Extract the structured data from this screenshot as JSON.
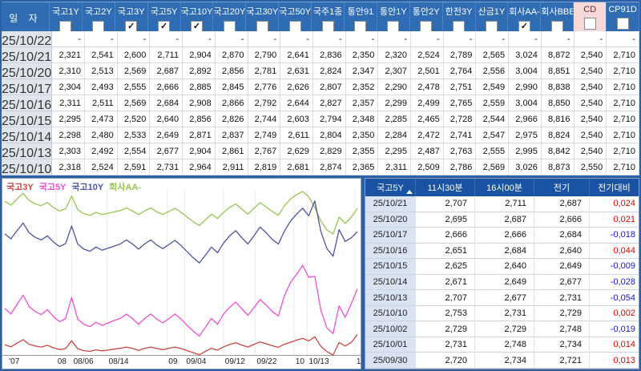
{
  "colors": {
    "frame_blue": "#2b5fa6",
    "header_blue": "#2f6cb3",
    "quote_header_blue": "#1a53a3",
    "date_cell_bg": "#e0e5ec",
    "quote_date_bg": "#d9e3f1",
    "cd_header_bg": "#f8d9d9",
    "cd_header_text": "#6a2a2a",
    "positive_red": "#e00000",
    "negative_blue": "#1616cc"
  },
  "top_table": {
    "date_header": "일 자",
    "columns": [
      {
        "label": "국고1Y",
        "checked": false
      },
      {
        "label": "국고2Y",
        "checked": false
      },
      {
        "label": "국고3Y",
        "checked": true
      },
      {
        "label": "국고5Y",
        "checked": true
      },
      {
        "label": "국고10Y",
        "checked": true
      },
      {
        "label": "국고20Y",
        "checked": false
      },
      {
        "label": "국고30Y",
        "checked": false
      },
      {
        "label": "국고50Y",
        "checked": false
      },
      {
        "label": "국주1종",
        "checked": false
      },
      {
        "label": "통안91",
        "checked": false
      },
      {
        "label": "통안1Y",
        "checked": false
      },
      {
        "label": "통안2Y",
        "checked": false
      },
      {
        "label": "한전3Y",
        "checked": false
      },
      {
        "label": "산금1Y",
        "checked": false
      },
      {
        "label": "회사AA-",
        "checked": true
      },
      {
        "label": "회사BBB-",
        "checked": false
      },
      {
        "label": "CD",
        "checked": false,
        "highlight": true
      },
      {
        "label": "CP91D",
        "checked": false
      }
    ],
    "rows": [
      {
        "date": "25/10/22",
        "values": [
          "-",
          "-",
          "-",
          "-",
          "-",
          "-",
          "-",
          "-",
          "-",
          "-",
          "-",
          "-",
          "-",
          "-",
          "-",
          "-",
          "-",
          "-"
        ]
      },
      {
        "date": "25/10/21",
        "values": [
          "2,321",
          "2,541",
          "2,600",
          "2,711",
          "2,904",
          "2,870",
          "2,790",
          "2,641",
          "2,836",
          "2,350",
          "2,320",
          "2,524",
          "2,789",
          "2,565",
          "3,024",
          "8,872",
          "2,540",
          "2,710"
        ]
      },
      {
        "date": "25/10/20",
        "values": [
          "2,310",
          "2,513",
          "2,569",
          "2,687",
          "2,892",
          "2,856",
          "2,781",
          "2,631",
          "2,824",
          "2,347",
          "2,307",
          "2,501",
          "2,764",
          "2,556",
          "3,004",
          "8,851",
          "2,540",
          "2,710"
        ]
      },
      {
        "date": "25/10/17",
        "values": [
          "2,304",
          "2,493",
          "2,555",
          "2,666",
          "2,885",
          "2,845",
          "2,776",
          "2,626",
          "2,807",
          "2,352",
          "2,290",
          "2,478",
          "2,751",
          "2,549",
          "2,990",
          "8,838",
          "2,540",
          "2,710"
        ]
      },
      {
        "date": "25/10/16",
        "values": [
          "2,311",
          "2,511",
          "2,569",
          "2,684",
          "2,908",
          "2,866",
          "2,792",
          "2,644",
          "2,827",
          "2,357",
          "2,299",
          "2,499",
          "2,765",
          "2,559",
          "3,004",
          "8,850",
          "2,540",
          "2,710"
        ]
      },
      {
        "date": "25/10/15",
        "values": [
          "2,295",
          "2,473",
          "2,520",
          "2,640",
          "2,856",
          "2,826",
          "2,744",
          "2,603",
          "2,794",
          "2,348",
          "2,285",
          "2,465",
          "2,728",
          "2,544",
          "2,966",
          "8,816",
          "2,540",
          "2,710"
        ]
      },
      {
        "date": "25/10/14",
        "values": [
          "2,298",
          "2,480",
          "2,533",
          "2,649",
          "2,871",
          "2,837",
          "2,749",
          "2,611",
          "2,804",
          "2,350",
          "2,284",
          "2,472",
          "2,741",
          "2,547",
          "2,975",
          "8,824",
          "2,540",
          "2,710"
        ]
      },
      {
        "date": "25/10/13",
        "values": [
          "2,303",
          "2,492",
          "2,554",
          "2,677",
          "2,904",
          "2,861",
          "2,767",
          "2,629",
          "2,829",
          "2,355",
          "2,295",
          "2,487",
          "2,763",
          "2,555",
          "2,995",
          "8,842",
          "2,540",
          "2,710"
        ]
      },
      {
        "date": "25/10/10",
        "values": [
          "2,318",
          "2,524",
          "2,591",
          "2,731",
          "2,964",
          "2,911",
          "2,819",
          "2,681",
          "2,874",
          "2,365",
          "2,311",
          "2,509",
          "2,786",
          "2,569",
          "3,026",
          "8,873",
          "2,550",
          "2,710"
        ]
      }
    ]
  },
  "quote_table": {
    "title": "국고5Y",
    "columns": [
      "11시30분",
      "16시00분",
      "전기",
      "전기대비"
    ],
    "rows": [
      {
        "date": "25/10/21",
        "t1130": "2,707",
        "t1600": "2,711",
        "prev": "2,687",
        "change": "0,024"
      },
      {
        "date": "25/10/20",
        "t1130": "2,695",
        "t1600": "2,687",
        "prev": "2,666",
        "change": "0,021"
      },
      {
        "date": "25/10/17",
        "t1130": "2,666",
        "t1600": "2,666",
        "prev": "2,684",
        "change": "-0,018"
      },
      {
        "date": "25/10/16",
        "t1130": "2,651",
        "t1600": "2,684",
        "prev": "2,640",
        "change": "0,044"
      },
      {
        "date": "25/10/15",
        "t1130": "2,625",
        "t1600": "2,640",
        "prev": "2,649",
        "change": "-0,009"
      },
      {
        "date": "25/10/14",
        "t1130": "2,671",
        "t1600": "2,649",
        "prev": "2,677",
        "change": "-0,028"
      },
      {
        "date": "25/10/13",
        "t1130": "2,707",
        "t1600": "2,677",
        "prev": "2,731",
        "change": "-0,054"
      },
      {
        "date": "25/10/10",
        "t1130": "2,753",
        "t1600": "2,731",
        "prev": "2,729",
        "change": "0,002"
      },
      {
        "date": "25/10/02",
        "t1130": "2,729",
        "t1600": "2,729",
        "prev": "2,748",
        "change": "-0,019"
      },
      {
        "date": "25/10/01",
        "t1130": "2,731",
        "t1600": "2,748",
        "prev": "2,734",
        "change": "0,014"
      },
      {
        "date": "25/09/30",
        "t1130": "2,720",
        "t1600": "2,734",
        "prev": "2,721",
        "change": "0,013"
      }
    ]
  },
  "chart_data": {
    "type": "line",
    "title": "",
    "legend_position": "top-left",
    "grid": "vertical",
    "x_ticks": [
      {
        "label": "'07",
        "pos": 0.012
      },
      {
        "label": "08",
        "pos": 0.145
      },
      {
        "label": "08/06",
        "pos": 0.19
      },
      {
        "label": "08/14",
        "pos": 0.29
      },
      {
        "label": "09",
        "pos": 0.46
      },
      {
        "label": "09/04",
        "pos": 0.51
      },
      {
        "label": "09/12",
        "pos": 0.62
      },
      {
        "label": "09/22",
        "pos": 0.71
      },
      {
        "label": "10",
        "pos": 0.82
      },
      {
        "label": "10/13",
        "pos": 0.858
      },
      {
        "label": "1",
        "pos": 0.993
      }
    ],
    "series": [
      {
        "name": "국고3Y",
        "color": "#cc4643",
        "values": [
          2.56,
          2.552,
          2.566,
          2.58,
          2.562,
          2.555,
          2.551,
          2.558,
          2.548,
          2.541,
          2.545,
          2.576,
          2.544,
          2.537,
          2.534,
          2.54,
          2.536,
          2.539,
          2.543,
          2.546,
          2.551,
          2.546,
          2.538,
          2.546,
          2.551,
          2.545,
          2.541,
          2.546,
          2.551,
          2.545,
          2.537,
          2.529,
          2.521,
          2.534,
          2.546,
          2.539,
          2.552,
          2.561,
          2.568,
          2.559,
          2.551,
          2.561,
          2.571,
          2.564,
          2.556,
          2.55,
          2.562,
          2.57,
          2.578,
          2.585,
          2.575,
          2.591,
          2.554,
          2.533,
          2.52,
          2.569,
          2.555,
          2.569,
          2.6
        ]
      },
      {
        "name": "국고5Y",
        "color": "#ee4fd4",
        "values": [
          2.68,
          2.671,
          2.686,
          2.701,
          2.683,
          2.675,
          2.67,
          2.678,
          2.667,
          2.659,
          2.664,
          2.697,
          2.663,
          2.655,
          2.651,
          2.658,
          2.653,
          2.657,
          2.661,
          2.664,
          2.671,
          2.664,
          2.655,
          2.664,
          2.671,
          2.663,
          2.657,
          2.664,
          2.671,
          2.663,
          2.653,
          2.644,
          2.636,
          2.65,
          2.664,
          2.655,
          2.671,
          2.682,
          2.69,
          2.679,
          2.669,
          2.681,
          2.694,
          2.685,
          2.675,
          2.668,
          2.7,
          2.721,
          2.734,
          2.748,
          2.729,
          2.731,
          2.677,
          2.649,
          2.64,
          2.684,
          2.666,
          2.687,
          2.711
        ]
      },
      {
        "name": "국고10Y",
        "color": "#4b55a1",
        "values": [
          2.9,
          2.89,
          2.906,
          2.921,
          2.902,
          2.893,
          2.888,
          2.896,
          2.884,
          2.875,
          2.881,
          2.915,
          2.88,
          2.87,
          2.866,
          2.874,
          2.868,
          2.872,
          2.876,
          2.88,
          2.888,
          2.88,
          2.87,
          2.88,
          2.888,
          2.878,
          2.871,
          2.879,
          2.887,
          2.877,
          2.865,
          2.853,
          2.843,
          2.858,
          2.874,
          2.863,
          2.882,
          2.896,
          2.906,
          2.892,
          2.88,
          2.896,
          2.913,
          2.902,
          2.889,
          2.88,
          2.905,
          2.925,
          2.938,
          2.95,
          2.935,
          2.964,
          2.904,
          2.871,
          2.856,
          2.908,
          2.885,
          2.892,
          2.904
        ]
      },
      {
        "name": "회사AA-",
        "color": "#96c651",
        "values": [
          3.04,
          3.031,
          3.045,
          3.058,
          3.042,
          3.034,
          3.03,
          3.037,
          3.026,
          3.018,
          3.023,
          3.052,
          3.021,
          3.012,
          3.008,
          3.015,
          3.01,
          3.013,
          3.016,
          3.019,
          3.025,
          3.018,
          3.01,
          3.018,
          3.025,
          3.016,
          3.01,
          3.017,
          3.024,
          3.015,
          3.004,
          2.994,
          2.985,
          2.998,
          3.011,
          3.001,
          3.015,
          3.026,
          3.034,
          3.022,
          3.011,
          3.024,
          3.037,
          3.027,
          3.017,
          3.008,
          3.03,
          3.045,
          3.055,
          3.062,
          3.05,
          3.026,
          2.995,
          2.975,
          2.966,
          3.004,
          2.99,
          3.004,
          3.024
        ]
      }
    ]
  }
}
